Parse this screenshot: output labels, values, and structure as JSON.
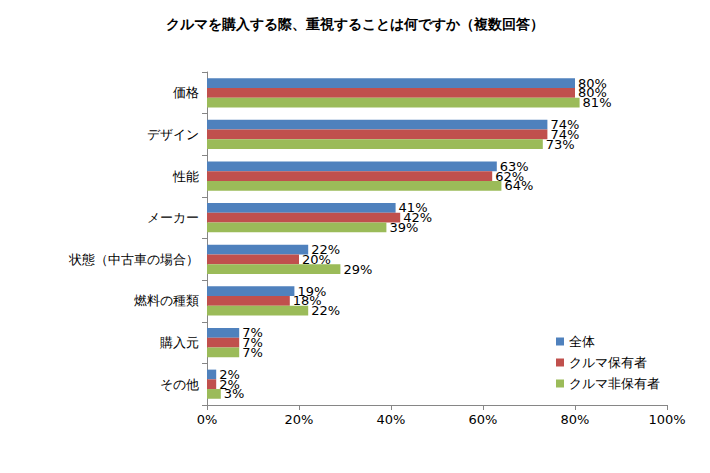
{
  "chart_data": {
    "type": "bar",
    "title": "クルマを購入する際、重視することは何ですか（複数回答）",
    "orientation": "horizontal",
    "categories": [
      "価格",
      "デザイン",
      "性能",
      "メーカー",
      "状態（中古車の場合）",
      "燃料の種類",
      "購入元",
      "その他"
    ],
    "series": [
      {
        "name": "全体",
        "color": "#4f81bd",
        "values": [
          80,
          74,
          63,
          41,
          22,
          19,
          7,
          2
        ],
        "value_labels": [
          "80%",
          "74%",
          "63%",
          "41%",
          "22%",
          "19%",
          "7%",
          "2%"
        ]
      },
      {
        "name": "クルマ保有者",
        "color": "#c0504d",
        "values": [
          80,
          74,
          62,
          42,
          20,
          18,
          7,
          2
        ],
        "value_labels": [
          "80%",
          "74%",
          "62%",
          "42%",
          "20%",
          "18%",
          "7%",
          "2%"
        ]
      },
      {
        "name": "クルマ非保有者",
        "color": "#9bbb59",
        "values": [
          81,
          73,
          64,
          39,
          29,
          22,
          7,
          3
        ],
        "value_labels": [
          "81%",
          "73%",
          "64%",
          "39%",
          "29%",
          "22%",
          "7%",
          "3%"
        ]
      }
    ],
    "xlim": [
      0,
      100
    ],
    "xticks": [
      {
        "value": 0,
        "label": "0%"
      },
      {
        "value": 20,
        "label": "20%"
      },
      {
        "value": 40,
        "label": "40%"
      },
      {
        "value": 60,
        "label": "60%"
      },
      {
        "value": 80,
        "label": "80%"
      },
      {
        "value": 100,
        "label": "100%"
      }
    ],
    "data_labels": true,
    "grid": false,
    "legend": "lower right"
  }
}
